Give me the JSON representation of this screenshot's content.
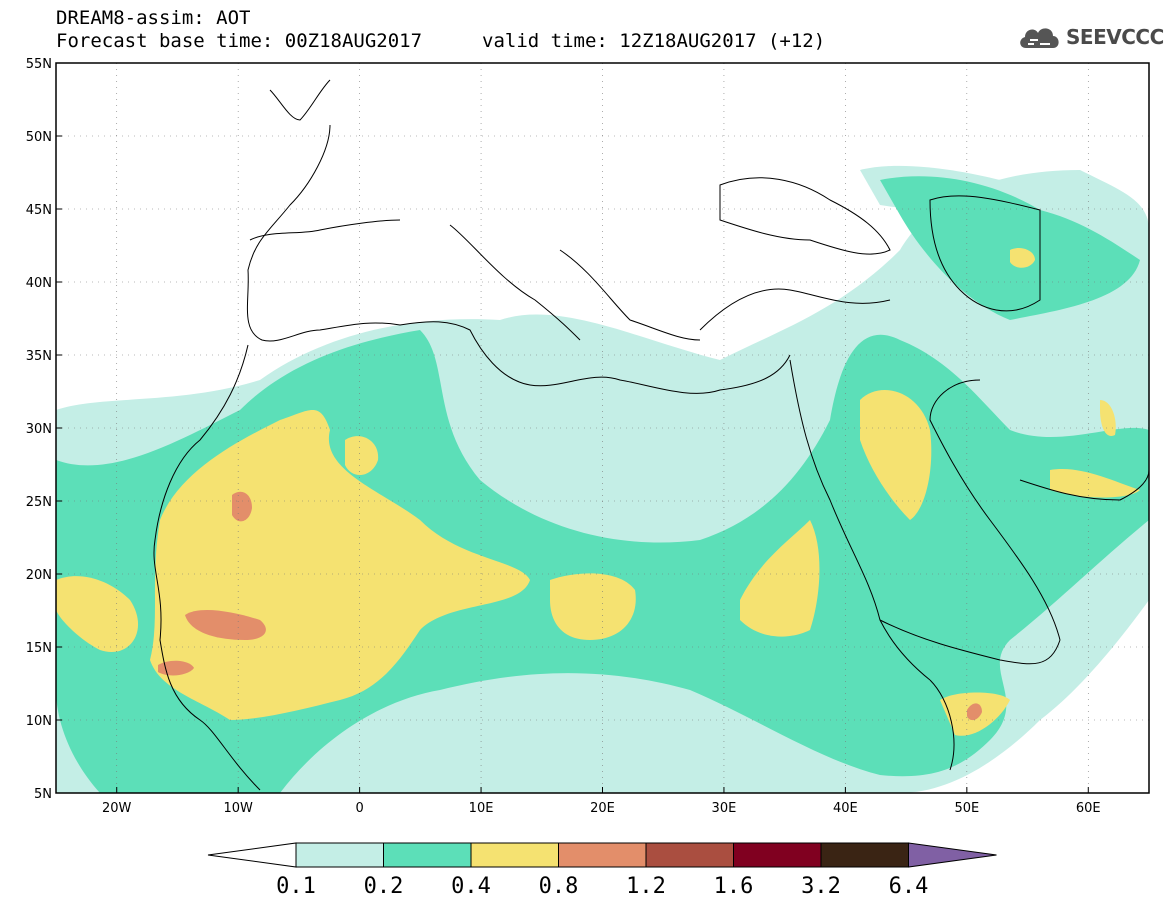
{
  "header": {
    "title": "DREAM8-assim: AOT",
    "base_time": "Forecast base time: 00Z18AUG2017",
    "valid_time": "valid time: 12Z18AUG2017 (+12)",
    "logo_text": "SEEVCCC"
  },
  "map": {
    "lat_range": [
      5,
      55
    ],
    "lon_range": [
      -25,
      65
    ],
    "lat_labels": [
      "55N",
      "50N",
      "45N",
      "40N",
      "35N",
      "30N",
      "25N",
      "20N",
      "15N",
      "10N",
      "5N"
    ],
    "lon_labels": [
      "20W",
      "10W",
      "0",
      "10E",
      "20E",
      "30E",
      "40E",
      "50E",
      "60E"
    ],
    "grid": "dotted"
  },
  "colorbar": {
    "levels": [
      "0.1",
      "0.2",
      "0.4",
      "0.8",
      "1.2",
      "1.6",
      "3.2",
      "6.4"
    ],
    "colors": [
      "#c4eee6",
      "#5cdfb8",
      "#f5e271",
      "#e38e6a",
      "#aa4e40",
      "#800020",
      "#3a2414",
      "#8060a4"
    ],
    "below_color": "#ffffff"
  },
  "colors": {
    "aot_0_1": "#c4eee6",
    "aot_0_2": "#5cdfb8",
    "aot_0_4": "#f5e271",
    "aot_0_8": "#e38e6a",
    "aot_1_2": "#aa4e40"
  }
}
